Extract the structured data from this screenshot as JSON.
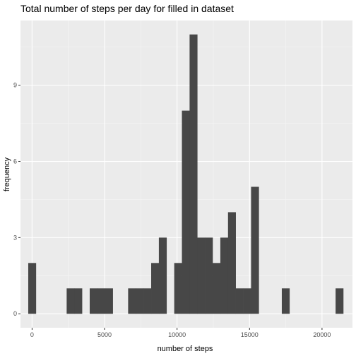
{
  "chart_data": {
    "type": "bar",
    "title": "Total number of steps per day for filled in dataset",
    "xlabel": "number of steps",
    "ylabel": "frequency",
    "xlim": [
      -800,
      22100
    ],
    "ylim": [
      -0.55,
      11.55
    ],
    "x_ticks": [
      0,
      5000,
      10000,
      15000,
      20000
    ],
    "x_minor_ticks": [
      2500,
      7500,
      12500,
      17500
    ],
    "y_ticks": [
      0,
      3,
      6,
      9
    ],
    "y_minor_ticks": [
      1.5,
      4.5,
      7.5,
      10.5
    ],
    "bin_width": 530,
    "bins": [
      {
        "x": 0,
        "count": 2
      },
      {
        "x": 2650,
        "count": 1
      },
      {
        "x": 3180,
        "count": 1
      },
      {
        "x": 4240,
        "count": 1
      },
      {
        "x": 4770,
        "count": 1
      },
      {
        "x": 5300,
        "count": 1
      },
      {
        "x": 6890,
        "count": 1
      },
      {
        "x": 7420,
        "count": 1
      },
      {
        "x": 7950,
        "count": 1
      },
      {
        "x": 8480,
        "count": 2
      },
      {
        "x": 9010,
        "count": 3
      },
      {
        "x": 10070,
        "count": 2
      },
      {
        "x": 10600,
        "count": 8
      },
      {
        "x": 11130,
        "count": 11
      },
      {
        "x": 11660,
        "count": 3
      },
      {
        "x": 12190,
        "count": 3
      },
      {
        "x": 12720,
        "count": 2
      },
      {
        "x": 13250,
        "count": 3
      },
      {
        "x": 13780,
        "count": 4
      },
      {
        "x": 14310,
        "count": 1
      },
      {
        "x": 14840,
        "count": 1
      },
      {
        "x": 15370,
        "count": 5
      },
      {
        "x": 17490,
        "count": 1
      },
      {
        "x": 21200,
        "count": 1
      }
    ],
    "grid": true,
    "colors": {
      "panel": "#ebebeb",
      "grid_major": "#ffffff",
      "grid_minor": "#f5f5f5",
      "bar": "#474747",
      "tick": "#333333",
      "tick_label": "#4d4d4d"
    }
  }
}
